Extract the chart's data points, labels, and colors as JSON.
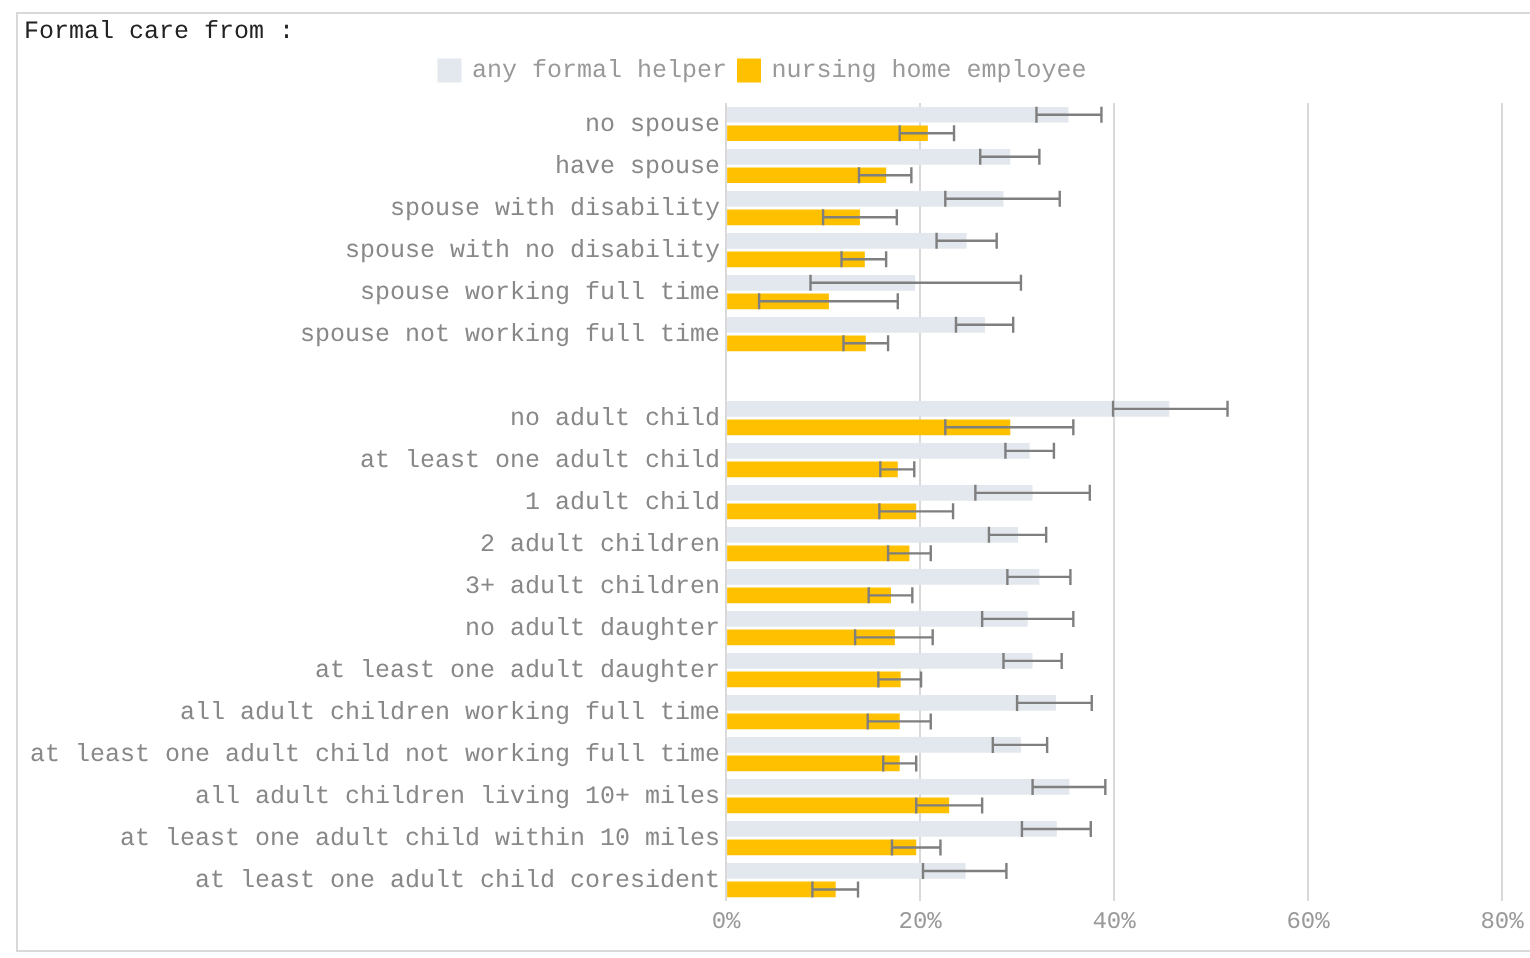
{
  "chart_data": {
    "type": "bar",
    "orientation": "horizontal",
    "title": "Formal care from :",
    "categories": [
      "no spouse",
      "have spouse",
      "spouse with disability",
      "spouse with no disability",
      "spouse working full time",
      "spouse not working full time",
      null,
      "no adult child",
      "at least one adult child",
      "1 adult child",
      "2 adult children",
      "3+ adult children",
      "no adult daughter",
      "at least one adult daughter",
      "all adult children working full time",
      "at least one adult child not working full time",
      "all adult children living 10+ miles",
      "at least one adult child within 10 miles",
      "at least one adult child coresident"
    ],
    "series": [
      {
        "name": "any formal helper",
        "color": "#e3e7ee",
        "values": [
          35.3,
          29.3,
          28.6,
          24.8,
          19.5,
          26.7,
          null,
          45.7,
          31.3,
          31.6,
          30.1,
          32.3,
          31.1,
          31.6,
          34.0,
          30.4,
          35.4,
          34.1,
          24.7
        ],
        "errors": [
          [
            32.0,
            38.7
          ],
          [
            26.2,
            32.3
          ],
          [
            22.6,
            34.4
          ],
          [
            21.7,
            27.9
          ],
          [
            8.7,
            30.4
          ],
          [
            23.7,
            29.6
          ],
          null,
          [
            39.9,
            51.7
          ],
          [
            28.8,
            33.8
          ],
          [
            25.7,
            37.5
          ],
          [
            27.1,
            33.0
          ],
          [
            29.0,
            35.5
          ],
          [
            26.4,
            35.8
          ],
          [
            28.6,
            34.6
          ],
          [
            30.0,
            37.7
          ],
          [
            27.5,
            33.1
          ],
          [
            31.6,
            39.1
          ],
          [
            30.5,
            37.6
          ],
          [
            20.3,
            28.9
          ]
        ]
      },
      {
        "name": "nursing home employee",
        "color": "#ffc000",
        "values": [
          20.8,
          16.5,
          13.8,
          14.3,
          10.6,
          14.4,
          null,
          29.3,
          17.7,
          19.6,
          18.9,
          17.0,
          17.4,
          18.0,
          17.9,
          17.9,
          23.0,
          19.6,
          11.3
        ],
        "errors": [
          [
            17.9,
            23.5
          ],
          [
            13.7,
            19.1
          ],
          [
            10.0,
            17.6
          ],
          [
            11.9,
            16.5
          ],
          [
            3.4,
            17.7
          ],
          [
            12.1,
            16.7
          ],
          null,
          [
            22.6,
            35.8
          ],
          [
            15.9,
            19.4
          ],
          [
            15.8,
            23.4
          ],
          [
            16.7,
            21.1
          ],
          [
            14.7,
            19.2
          ],
          [
            13.3,
            21.3
          ],
          [
            15.7,
            20.1
          ],
          [
            14.6,
            21.1
          ],
          [
            16.2,
            19.6
          ],
          [
            19.6,
            26.4
          ],
          [
            17.1,
            22.1
          ],
          [
            8.9,
            13.6
          ]
        ]
      }
    ],
    "xlim": [
      0,
      80
    ],
    "xticks": [
      {
        "value": 0,
        "label": "0%"
      },
      {
        "value": 20,
        "label": "20%"
      },
      {
        "value": 40,
        "label": "40%"
      },
      {
        "value": 60,
        "label": "60%"
      },
      {
        "value": 80,
        "label": "80%"
      }
    ],
    "grid": "x",
    "legend": "top"
  }
}
